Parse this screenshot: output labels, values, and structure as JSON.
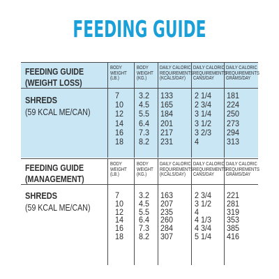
{
  "title": "FEEDING GUIDE",
  "sections": [
    {
      "title_line1": "FEEDING GUIDE",
      "title_line2": "(WEIGHT LOSS)",
      "headers": [
        [
          "BODY",
          "WEIGHT",
          "(LB.)"
        ],
        [
          "BODY",
          "WEIGHT",
          "(KG.)"
        ],
        [
          "DAILY CALORIC",
          "REQUIREMENTS",
          "(KCALS/DAY)"
        ],
        [
          "DAILY CALORIC",
          "REQUIREMENTS",
          "CANS/DAY"
        ],
        [
          "DAILY CALORIC",
          "REQUIREMENTS",
          "GRAMS/DAY"
        ]
      ],
      "product": "SHREDS",
      "product_sub": "(59 KCAL ME/CAN)",
      "columns": [
        [
          "7",
          "10",
          "12",
          "14",
          "16",
          "18"
        ],
        [
          "3.2",
          "4.5",
          "5.5",
          "6.4",
          "7.3",
          "8.2"
        ],
        [
          "133",
          "165",
          "184",
          "201",
          "217",
          "231"
        ],
        [
          "2 1/4",
          "2 3/4",
          "3 1/4",
          "3 1/2",
          "3 2/3",
          "4"
        ],
        [
          "181",
          "224",
          "250",
          "273",
          "294",
          "313"
        ]
      ]
    },
    {
      "title_line1": "FEEDING GUIDE",
      "title_line2": "(MANAGEMENT)",
      "headers": [
        [
          "BODY",
          "WEIGHT",
          "(LB.)"
        ],
        [
          "BODY",
          "WEIGHT",
          "(KG.)"
        ],
        [
          "DAILY CALORIC",
          "REQUIREMENTS",
          "(KCALS/DAY)"
        ],
        [
          "DAILY CALORIC",
          "REQUIREMENTS",
          "CANS/DAY"
        ],
        [
          "DAILY CALORIC",
          "REQUIREMENTS",
          "GRAMS/DAY"
        ]
      ],
      "product": "SHREDS",
      "product_sub": "(59 KCAL ME/CAN)",
      "columns": [
        [
          "7",
          "10",
          "12",
          "14",
          "16",
          "18"
        ],
        [
          "3.2",
          "4.5",
          "5.5",
          "6.4",
          "7.3",
          "8.2"
        ],
        [
          "163",
          "207",
          "235",
          "260",
          "284",
          "307"
        ],
        [
          "2 3/4",
          "3 1/2",
          "4",
          "4 1/3",
          "4 3/4",
          "5 1/4"
        ],
        [
          "221",
          "281",
          "319",
          "353",
          "385",
          "416"
        ]
      ]
    }
  ]
}
